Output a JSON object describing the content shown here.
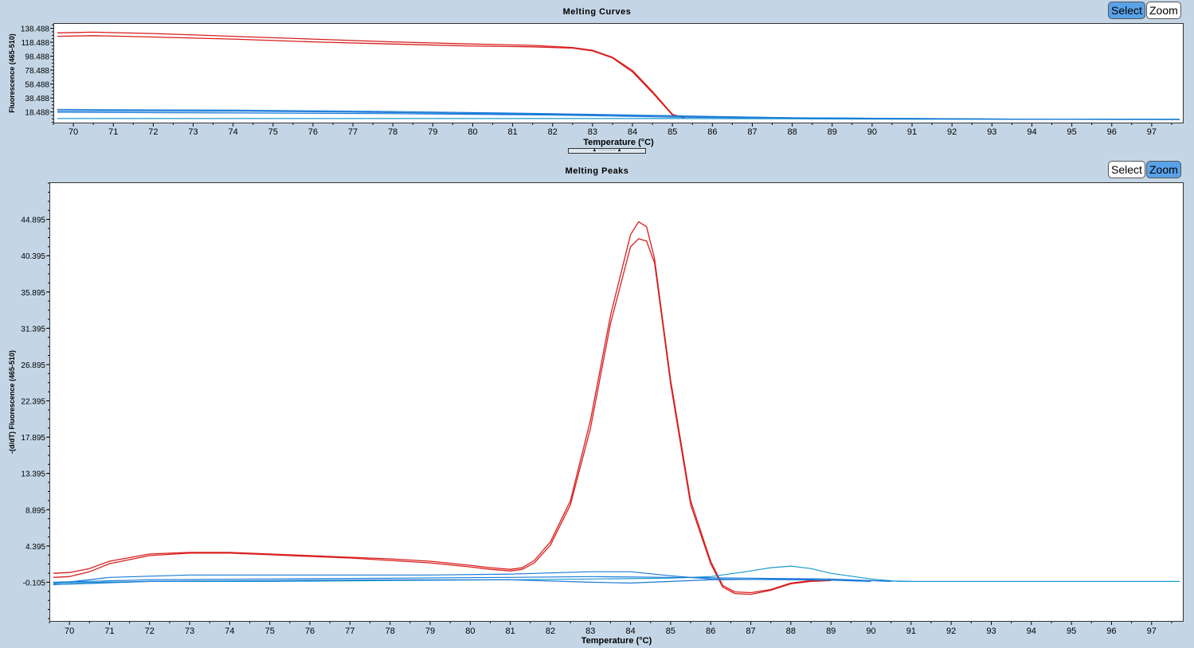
{
  "buttons": {
    "select_label": "Select",
    "zoom_label": "Zoom"
  },
  "splitter_glyph": "▲ ··········· ▲",
  "colors": {
    "background": "#c4d6e6",
    "button_active": "#5aa2e8",
    "positive_series": "#d81e1e",
    "negative_series": "#1a7ad8"
  },
  "chart_data": [
    {
      "type": "line",
      "title": "Melting Curves",
      "xlabel": "Temperature (°C)",
      "ylabel": "Fluorescence (465-510)",
      "xlim": [
        69.5,
        97.8
      ],
      "ylim": [
        2,
        146
      ],
      "x_ticks": [
        70,
        71,
        72,
        73,
        74,
        75,
        76,
        77,
        78,
        79,
        80,
        81,
        82,
        83,
        84,
        85,
        86,
        87,
        88,
        89,
        90,
        91,
        92,
        93,
        94,
        95,
        96,
        97
      ],
      "y_ticks": [
        "18.488",
        "38.488",
        "58.488",
        "78.488",
        "98.488",
        "118.488",
        "138.488"
      ],
      "y_tick_values": [
        18.488,
        38.488,
        58.488,
        78.488,
        98.488,
        118.488,
        138.488
      ],
      "series": [
        {
          "color": "#d81e1e",
          "x": [
            69.6,
            70.5,
            72,
            74,
            76,
            78,
            80,
            81.5,
            82.5,
            83,
            83.5,
            84,
            84.5,
            85,
            85.3
          ],
          "y": [
            132,
            133,
            131,
            127,
            123,
            119,
            116,
            114,
            111,
            107,
            97,
            78,
            48,
            15,
            10
          ]
        },
        {
          "color": "#d81e1e",
          "x": [
            69.6,
            70.5,
            72,
            74,
            76,
            78,
            80,
            81.5,
            82.5,
            83,
            83.5,
            84,
            84.5,
            85,
            85.3
          ],
          "y": [
            127,
            128,
            126,
            123,
            119,
            116,
            113,
            112,
            110,
            106,
            96,
            76,
            46,
            14,
            10
          ]
        },
        {
          "color": "#1a7ad8",
          "x": [
            69.6,
            74,
            78,
            82,
            85,
            88,
            91,
            94,
            97.7
          ],
          "y": [
            22,
            21,
            19,
            16,
            13,
            10,
            9,
            8,
            8
          ]
        },
        {
          "color": "#1a7ad8",
          "x": [
            69.6,
            74,
            78,
            82,
            85,
            88,
            91,
            94,
            97.7
          ],
          "y": [
            20,
            19.5,
            17.5,
            15,
            12.5,
            10,
            9,
            8,
            7.5
          ]
        },
        {
          "color": "#1a9ad0",
          "x": [
            69.6,
            74,
            78,
            82,
            85,
            88,
            91,
            94,
            97.7
          ],
          "y": [
            9,
            9,
            9,
            9,
            9,
            8.5,
            8,
            8,
            8
          ]
        },
        {
          "color": "#1a7ad8",
          "x": [
            69.6,
            74,
            78,
            82,
            85,
            88,
            91,
            94,
            97.7
          ],
          "y": [
            18,
            17,
            16,
            14,
            11,
            9.5,
            8.5,
            8,
            7.5
          ]
        }
      ]
    },
    {
      "type": "line",
      "title": "Melting Peaks",
      "xlabel": "Temperature (°C)",
      "ylabel": "-(d/dT) Fluorescence (465-510)",
      "xlim": [
        69.5,
        97.8
      ],
      "ylim": [
        -5,
        49.5
      ],
      "x_ticks": [
        70,
        71,
        72,
        73,
        74,
        75,
        76,
        77,
        78,
        79,
        80,
        81,
        82,
        83,
        84,
        85,
        86,
        87,
        88,
        89,
        90,
        91,
        92,
        93,
        94,
        95,
        96,
        97
      ],
      "y_ticks": [
        "-0.105",
        "4.395",
        "8.895",
        "13.395",
        "17.895",
        "22.395",
        "26.895",
        "31.395",
        "35.895",
        "40.395",
        "44.895"
      ],
      "y_tick_values": [
        -0.105,
        4.395,
        8.895,
        13.395,
        17.895,
        22.395,
        26.895,
        31.395,
        35.895,
        40.395,
        44.895
      ],
      "series": [
        {
          "color": "#d81e1e",
          "x": [
            69.6,
            70,
            70.5,
            71,
            72,
            73,
            74,
            75,
            76,
            77,
            78,
            79,
            80,
            80.5,
            81,
            81.3,
            81.6,
            82,
            82.5,
            83,
            83.5,
            84,
            84.2,
            84.4,
            84.6,
            85,
            85.5,
            86,
            86.3,
            86.6,
            87,
            87.5,
            88,
            88.5,
            89
          ],
          "y": [
            1,
            1.1,
            1.6,
            2.5,
            3.4,
            3.6,
            3.6,
            3.4,
            3.2,
            3,
            2.8,
            2.5,
            2.0,
            1.7,
            1.5,
            1.7,
            2.6,
            4.9,
            10,
            20,
            33,
            43,
            44.6,
            44,
            40,
            25,
            10,
            2.5,
            -0.5,
            -1.3,
            -1.4,
            -1,
            -0.2,
            0.1,
            0.2
          ]
        },
        {
          "color": "#d81e1e",
          "x": [
            69.6,
            70,
            70.5,
            71,
            72,
            73,
            74,
            75,
            76,
            77,
            78,
            79,
            80,
            80.5,
            81,
            81.3,
            81.6,
            82,
            82.5,
            83,
            83.5,
            84,
            84.2,
            84.4,
            84.6,
            85,
            85.5,
            86,
            86.3,
            86.6,
            87,
            87.5,
            88,
            88.5,
            89
          ],
          "y": [
            0.5,
            0.6,
            1.2,
            2.2,
            3.2,
            3.5,
            3.5,
            3.3,
            3.1,
            2.9,
            2.6,
            2.3,
            1.8,
            1.5,
            1.3,
            1.5,
            2.3,
            4.5,
            9.5,
            19,
            32,
            41.5,
            42.5,
            42.2,
            39.5,
            24.5,
            9.5,
            2.2,
            -0.7,
            -1.5,
            -1.6,
            -1.1,
            -0.3,
            0,
            0.1
          ]
        },
        {
          "color": "#1a7ad8",
          "x": [
            69.6,
            71,
            73,
            75,
            77,
            79,
            81,
            83,
            84,
            85,
            86,
            88,
            90,
            91
          ],
          "y": [
            -0.3,
            0.5,
            0.8,
            0.8,
            0.8,
            0.8,
            0.9,
            1.2,
            1.2,
            0.7,
            0.3,
            0.2,
            0.1,
            0
          ]
        },
        {
          "color": "#1a9ad0",
          "x": [
            69.6,
            72,
            75,
            78,
            81,
            83,
            85,
            86,
            87,
            87.5,
            88,
            88.5,
            89,
            90,
            90.7,
            97.7
          ],
          "y": [
            -0.2,
            0,
            0,
            0.1,
            0.2,
            0.3,
            0.4,
            0.6,
            1.3,
            1.7,
            1.9,
            1.6,
            1,
            0.3,
            0,
            0
          ]
        },
        {
          "color": "#1a7ad8",
          "x": [
            69.6,
            72,
            75,
            78,
            81,
            83,
            84,
            85,
            86,
            88,
            90
          ],
          "y": [
            -0.4,
            0,
            0.1,
            0.2,
            0.2,
            -0.1,
            -0.2,
            0,
            0.2,
            0.3,
            0
          ]
        },
        {
          "color": "#1a7ad8",
          "x": [
            69.6,
            72,
            75,
            78,
            81,
            83,
            85,
            87,
            89,
            90.5
          ],
          "y": [
            -0.1,
            0.2,
            0.3,
            0.4,
            0.5,
            0.6,
            0.5,
            0.4,
            0.3,
            0
          ]
        }
      ]
    }
  ]
}
